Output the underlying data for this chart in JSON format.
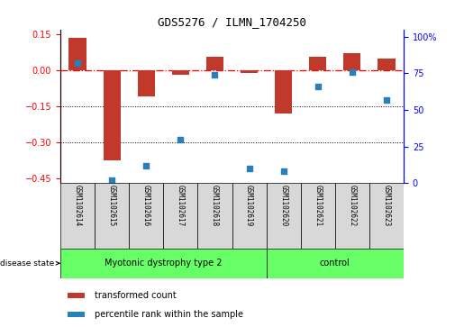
{
  "title": "GDS5276 / ILMN_1704250",
  "samples": [
    "GSM1102614",
    "GSM1102615",
    "GSM1102616",
    "GSM1102617",
    "GSM1102618",
    "GSM1102619",
    "GSM1102620",
    "GSM1102621",
    "GSM1102622",
    "GSM1102623"
  ],
  "red_values": [
    0.135,
    -0.375,
    -0.11,
    -0.02,
    0.055,
    -0.01,
    -0.18,
    0.055,
    0.07,
    0.05
  ],
  "blue_values_pct": [
    82,
    2,
    12,
    30,
    74,
    10,
    8,
    66,
    76,
    57
  ],
  "ylim_left": [
    -0.47,
    0.17
  ],
  "ylim_right": [
    0,
    105
  ],
  "yticks_left": [
    0.15,
    0,
    -0.15,
    -0.3,
    -0.45
  ],
  "yticks_right": [
    100,
    75,
    50,
    25,
    0
  ],
  "hline_y": 0,
  "dotted_lines": [
    -0.15,
    -0.3
  ],
  "bar_color": "#c0392b",
  "dot_color": "#2980b9",
  "disease_groups": [
    {
      "label": "Myotonic dystrophy type 2",
      "samples_count": 6
    },
    {
      "label": "control",
      "samples_count": 4
    }
  ],
  "disease_state_label": "disease state",
  "legend_items": [
    "transformed count",
    "percentile rank within the sample"
  ],
  "sample_box_color": "#d8d8d8",
  "green_color": "#66ff66"
}
